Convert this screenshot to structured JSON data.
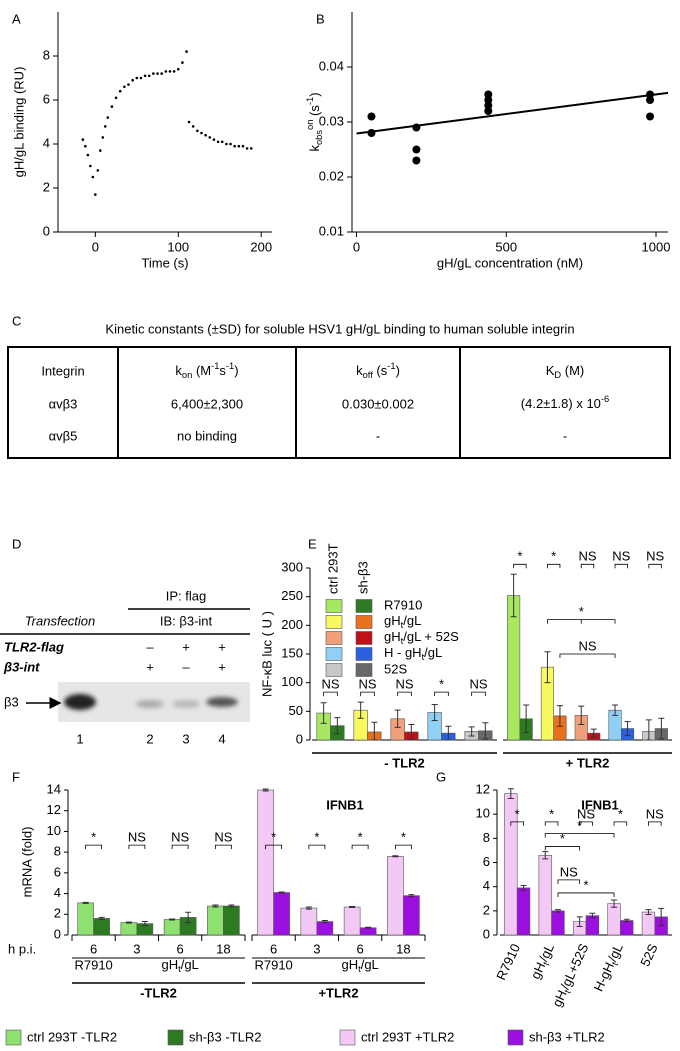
{
  "panel_labels": [
    "A",
    "B",
    "C",
    "D",
    "E",
    "F",
    "G"
  ],
  "chart_data": [
    {
      "type": "scatter",
      "ylabel": "gH/gL binding (RU)",
      "xlabel": "Time (s)",
      "color": "#000000",
      "x": [
        -15,
        -12,
        -9,
        -6,
        -3,
        0,
        3,
        6,
        9,
        12,
        15,
        20,
        25,
        30,
        35,
        40,
        45,
        50,
        55,
        60,
        65,
        70,
        75,
        80,
        85,
        90,
        95,
        100,
        105,
        110,
        113,
        118,
        123,
        128,
        133,
        138,
        143,
        148,
        153,
        158,
        163,
        168,
        173,
        178,
        183,
        188
      ],
      "y": [
        4.2,
        3.9,
        3.5,
        3.0,
        2.5,
        1.7,
        2.8,
        3.7,
        4.3,
        4.8,
        5.2,
        5.7,
        6.1,
        6.4,
        6.6,
        6.7,
        6.9,
        7.0,
        7.0,
        7.1,
        7.1,
        7.2,
        7.2,
        7.2,
        7.3,
        7.3,
        7.3,
        7.4,
        7.7,
        8.2,
        5.0,
        4.8,
        4.6,
        4.5,
        4.4,
        4.3,
        4.2,
        4.1,
        4.1,
        4.0,
        4.0,
        3.9,
        3.9,
        3.9,
        3.8,
        3.8
      ],
      "xlim": [
        -45,
        213
      ],
      "ylim": [
        0,
        10
      ],
      "xticks": [
        0,
        100,
        200
      ],
      "yticks": [
        0,
        2,
        4,
        6,
        8
      ]
    },
    {
      "type": "scatter",
      "ylabel": [
        "k",
        {
          "sub": "obs"
        },
        {
          "sup": "on"
        },
        " (s",
        {
          "sup": "-1"
        },
        ")"
      ],
      "xlabel": "gH/gL concentration (nM)",
      "color": "#000000",
      "x": [
        50,
        50,
        200,
        200,
        200,
        440,
        440,
        440,
        440,
        980,
        980,
        980
      ],
      "y": [
        0.031,
        0.028,
        0.029,
        0.025,
        0.023,
        0.035,
        0.034,
        0.033,
        0.032,
        0.035,
        0.034,
        0.031
      ],
      "fit_line": {
        "x": [
          0,
          1040
        ],
        "y": [
          0.0279,
          0.0353
        ]
      },
      "xlim": [
        -15,
        1040
      ],
      "ylim": [
        0.01,
        0.05
      ],
      "xticks": [
        0,
        500,
        1000
      ],
      "yticks": [
        0.01,
        0.02,
        0.03,
        0.04
      ]
    },
    {
      "type": "bar",
      "ylabel": "NF-κB luc ( U )",
      "ylim": [
        0,
        300
      ],
      "yticks": [
        0,
        50,
        100,
        150,
        200,
        250,
        300
      ],
      "legend_headers": [
        "ctrl 293T",
        "sh-β3"
      ],
      "categories": [
        "R7910",
        [
          "gH",
          {
            "sub": "t"
          },
          "/gL"
        ],
        [
          "gH",
          {
            "sub": "t"
          },
          "/gL + 52S"
        ],
        [
          "H - gH",
          {
            "sub": "t"
          },
          "/gL"
        ],
        "52S"
      ],
      "series_colors": [
        [
          "#a8e860",
          "#f8f860",
          "#f0a07a",
          "#90d0f4",
          "#c8c8c8"
        ],
        [
          "#2e7a22",
          "#e8701e",
          "#c0101a",
          "#2a60e0",
          "#686868"
        ]
      ],
      "panels": [
        {
          "label": "- TLR2",
          "values": [
            [
              47,
              52,
              37,
              48,
              15
            ],
            [
              25,
              14,
              14,
              12,
              16
            ]
          ],
          "errors": [
            [
              18,
              14,
              15,
              14,
              8
            ],
            [
              14,
              17,
              13,
              12,
              14
            ]
          ],
          "significance": [
            "NS",
            "NS",
            "NS",
            "*",
            "NS"
          ]
        },
        {
          "label": "+ TLR2",
          "values": [
            [
              252,
              127,
              43,
              52,
              15
            ],
            [
              37,
              42,
              12,
              20,
              20
            ]
          ],
          "errors": [
            [
              37,
              27,
              16,
              9,
              20
            ],
            [
              24,
              18,
              7,
              12,
              18
            ]
          ],
          "significance": [
            "*",
            "*",
            "NS",
            "NS",
            "NS"
          ],
          "cross_significance": [
            "*",
            "NS"
          ]
        }
      ]
    },
    {
      "type": "bar",
      "title": "IFNB1",
      "ylabel": "mRNA (fold)",
      "ylim": [
        0,
        14
      ],
      "yticks": [
        0,
        2,
        4,
        6,
        8,
        10,
        12,
        14
      ],
      "time_label": "h p.i.",
      "panels": [
        {
          "label": "-TLR2",
          "colors": [
            "#8ee070",
            "#2e7a22"
          ],
          "times": [
            6,
            3,
            6,
            18
          ],
          "viruses": [
            "R7910",
            [
              "gH",
              {
                "sub": "t"
              },
              "/gL"
            ]
          ],
          "values": [
            [
              3.1,
              1.2,
              1.5,
              2.8
            ],
            [
              1.6,
              1.1,
              1.7,
              2.8
            ]
          ],
          "errors": [
            [
              0.05,
              0.05,
              0.05,
              0.1
            ],
            [
              0.1,
              0.2,
              0.5,
              0.1
            ]
          ],
          "significance": [
            "*",
            "NS",
            "NS",
            "NS"
          ]
        },
        {
          "label": "+TLR2",
          "colors": [
            "#f4c8f4",
            "#9b10e0"
          ],
          "times": [
            6,
            3,
            6,
            18
          ],
          "viruses": [
            "R7910",
            [
              "gH",
              {
                "sub": "t"
              },
              "/gL"
            ]
          ],
          "values": [
            [
              14.0,
              2.6,
              2.7,
              7.6
            ],
            [
              4.1,
              1.3,
              0.7,
              3.8
            ]
          ],
          "errors": [
            [
              0.1,
              0.1,
              0.05,
              0.05
            ],
            [
              0.05,
              0.1,
              0.05,
              0.1
            ]
          ],
          "significance": [
            "*",
            "*",
            "*",
            "*"
          ]
        }
      ]
    },
    {
      "type": "bar",
      "title": "IFNB1",
      "ylim": [
        0,
        12
      ],
      "yticks": [
        0,
        2,
        4,
        6,
        8,
        10,
        12
      ],
      "categories": [
        "R7910",
        [
          "gH",
          {
            "sub": "t"
          },
          "/gL"
        ],
        [
          "gH",
          {
            "sub": "t"
          },
          "/gL+52S"
        ],
        [
          "H-gH",
          {
            "sub": "t"
          },
          "/gL"
        ],
        "52S"
      ],
      "colors": [
        "#f4c8f4",
        "#9b10e0"
      ],
      "values": [
        [
          11.7,
          6.6,
          1.1,
          2.6,
          1.9
        ],
        [
          3.9,
          2.0,
          1.6,
          1.2,
          1.5
        ]
      ],
      "errors": [
        [
          0.4,
          0.3,
          0.4,
          0.3,
          0.2
        ],
        [
          0.2,
          0.1,
          0.2,
          0.1,
          0.7
        ]
      ],
      "significance": [
        "*",
        "*",
        "NS",
        "*",
        "NS"
      ],
      "cross_significance": [
        "*",
        "*",
        "NS",
        "*"
      ]
    }
  ],
  "table": {
    "title": "Kinetic constants (±SD) for soluble HSV1 gH/gL binding to human soluble integrin",
    "header": [
      "Integrin",
      [
        "k",
        {
          "sub": "on"
        },
        " (M",
        {
          "sup": "-1"
        },
        "s",
        {
          "sup": "-1"
        },
        ")"
      ],
      [
        "k",
        {
          "sub": "off"
        },
        " (s",
        {
          "sup": "-1"
        },
        ")"
      ],
      [
        "K",
        {
          "sub": "D"
        },
        " (M)"
      ]
    ],
    "rows": [
      [
        "αvβ3",
        "6,400±2,300",
        "0.030±0.002",
        [
          "(4.2±1.8) x 10",
          {
            "sup": "-6"
          }
        ]
      ],
      [
        "αvβ5",
        "no binding",
        "-",
        "-"
      ]
    ]
  },
  "blot": {
    "ip": "IP: flag",
    "ib": "IB: β3-int",
    "transfection": "Transfection",
    "rows": [
      {
        "label": "TLR2-flag",
        "signs": [
          "–",
          "+",
          "+"
        ]
      },
      {
        "label": "β3-int",
        "signs": [
          "+",
          "–",
          "+"
        ]
      }
    ],
    "band_label": "β3",
    "lanes": [
      1,
      2,
      3,
      4
    ]
  },
  "legend": [
    {
      "label": "ctrl 293T -TLR2",
      "color": "#8ee070"
    },
    {
      "label": "sh-β3 -TLR2",
      "color": "#2e7a22"
    },
    {
      "label": "ctrl 293T +TLR2",
      "color": "#f4c8f4"
    },
    {
      "label": "sh-β3 +TLR2",
      "color": "#9b10e0"
    }
  ]
}
